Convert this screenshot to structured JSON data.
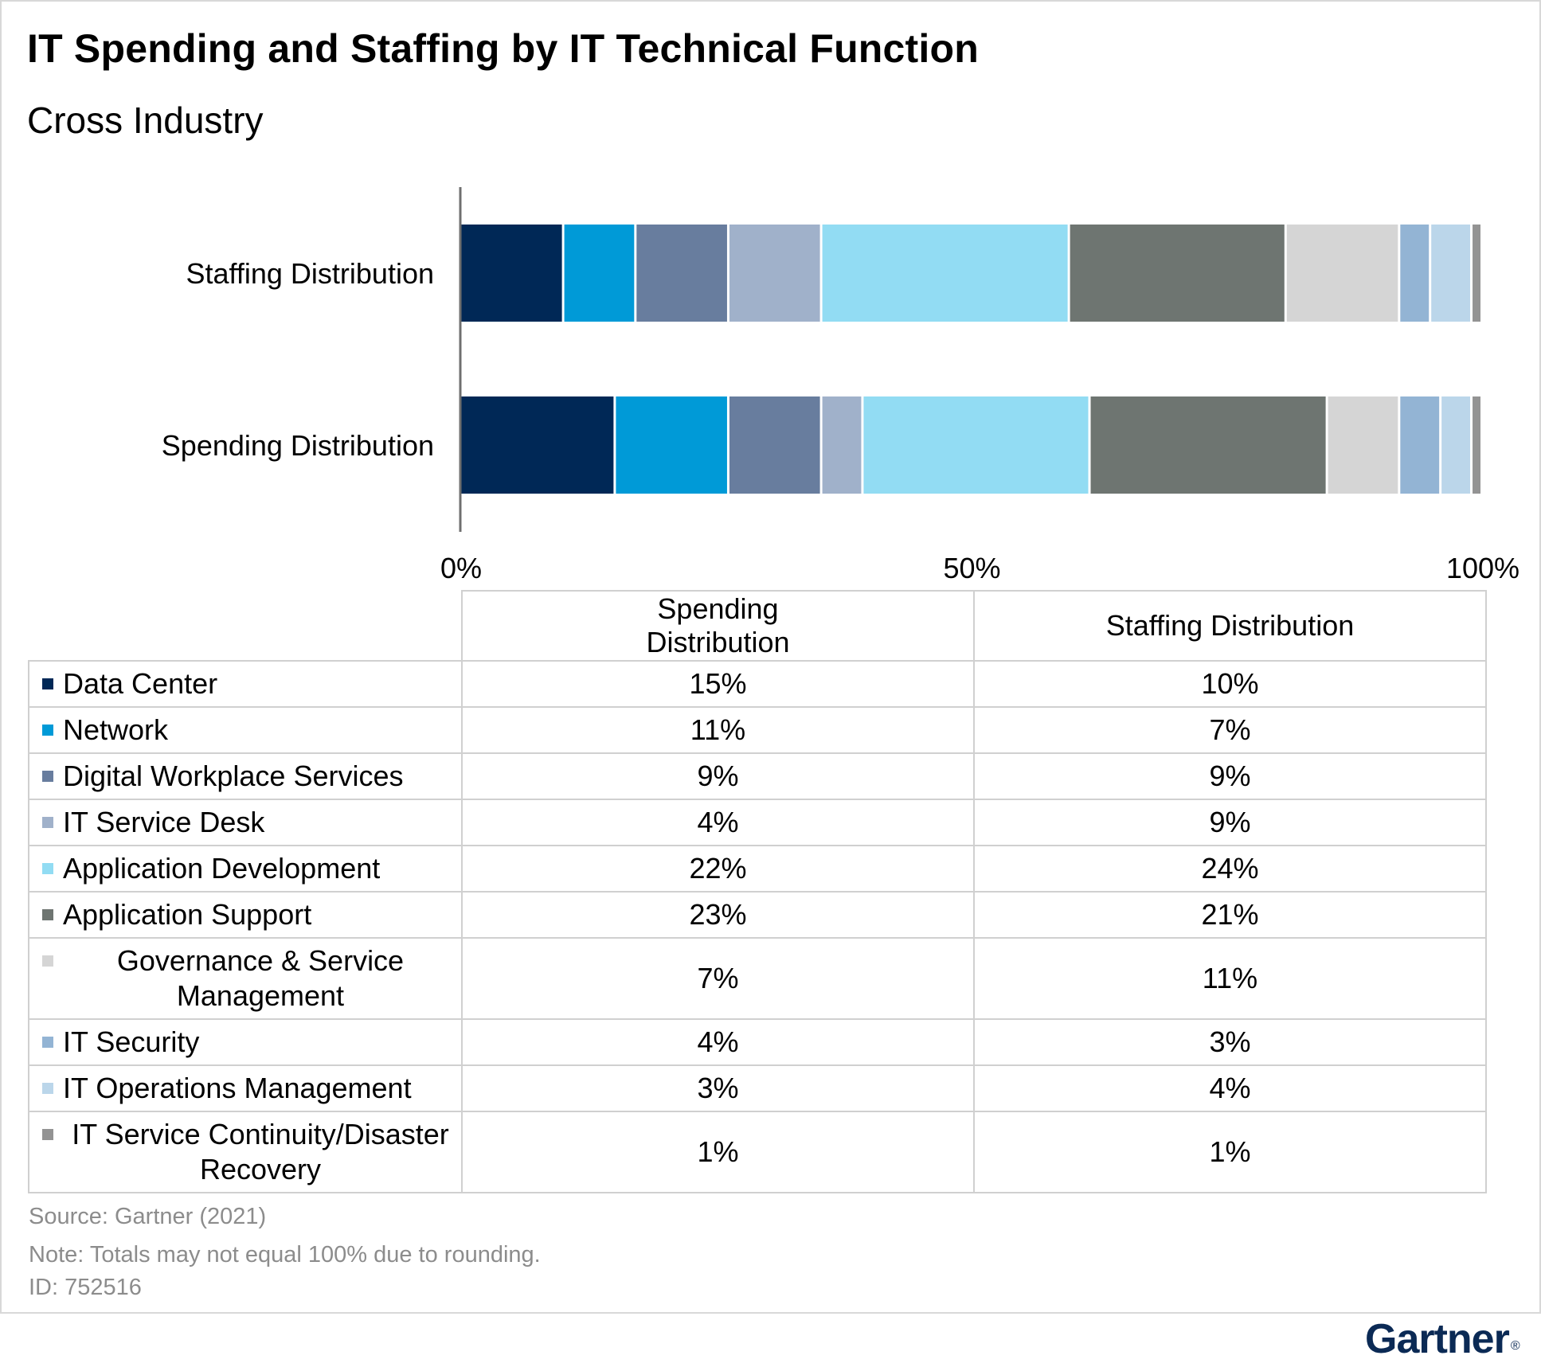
{
  "title": "IT Spending and Staffing by IT Technical Function",
  "subtitle": "Cross Industry",
  "chart_data": {
    "type": "bar",
    "orientation": "horizontal",
    "stacked": true,
    "categories": [
      "Staffing Distribution",
      "Spending Distribution"
    ],
    "series": [
      {
        "name": "Data Center",
        "color": "#002856",
        "values": [
          10,
          15
        ]
      },
      {
        "name": "Network",
        "color": "#009AD7",
        "values": [
          7,
          11
        ]
      },
      {
        "name": "Digital Workplace Services",
        "color": "#687D9E",
        "values": [
          9,
          9
        ]
      },
      {
        "name": "IT Service Desk",
        "color": "#A0B1CA",
        "values": [
          9,
          4
        ]
      },
      {
        "name": "Application Development",
        "color": "#92DCF3",
        "values": [
          24,
          22
        ]
      },
      {
        "name": "Application Support",
        "color": "#6E7571",
        "values": [
          21,
          23
        ]
      },
      {
        "name": "Governance & Service Management",
        "color": "#D5D5D5",
        "values": [
          11,
          7
        ]
      },
      {
        "name": "IT Security",
        "color": "#93B4D4",
        "values": [
          3,
          4
        ]
      },
      {
        "name": "IT Operations Management",
        "color": "#BBD6EA",
        "values": [
          4,
          3
        ]
      },
      {
        "name": "IT Service Continuity/Disaster Recovery",
        "color": "#939393",
        "values": [
          1,
          1
        ]
      }
    ],
    "xlim": [
      0,
      100
    ],
    "xticks": [
      "0%",
      "50%",
      "100%"
    ],
    "grid": false,
    "legend": "table-below"
  },
  "table": {
    "headers": [
      "Spending Distribution",
      "Staffing Distribution"
    ],
    "rows": [
      {
        "label": "Data Center",
        "spending": "15%",
        "staffing": "10%"
      },
      {
        "label": "Network",
        "spending": "11%",
        "staffing": "7%"
      },
      {
        "label": "Digital Workplace Services",
        "spending": "9%",
        "staffing": "9%"
      },
      {
        "label": "IT Service Desk",
        "spending": "4%",
        "staffing": "9%"
      },
      {
        "label": "Application Development",
        "spending": "22%",
        "staffing": "24%"
      },
      {
        "label": "Application Support",
        "spending": "23%",
        "staffing": "21%"
      },
      {
        "label": "Governance & Service Management",
        "spending": "7%",
        "staffing": "11%"
      },
      {
        "label": "IT Security",
        "spending": "4%",
        "staffing": "3%"
      },
      {
        "label": "IT Operations Management",
        "spending": "3%",
        "staffing": "4%"
      },
      {
        "label": "IT Service Continuity/Disaster Recovery",
        "spending": "1%",
        "staffing": "1%"
      }
    ]
  },
  "footer": {
    "source": "Source: Gartner (2021)",
    "note": "Note: Totals may not equal 100% due to rounding.",
    "id": "ID: 752516"
  },
  "logo": "Gartner",
  "colors": {
    "axis": "#6f6f6f",
    "table_border": "#d0d0d0",
    "footer_text": "#8c8c8c",
    "logo": "#0b2a55"
  }
}
